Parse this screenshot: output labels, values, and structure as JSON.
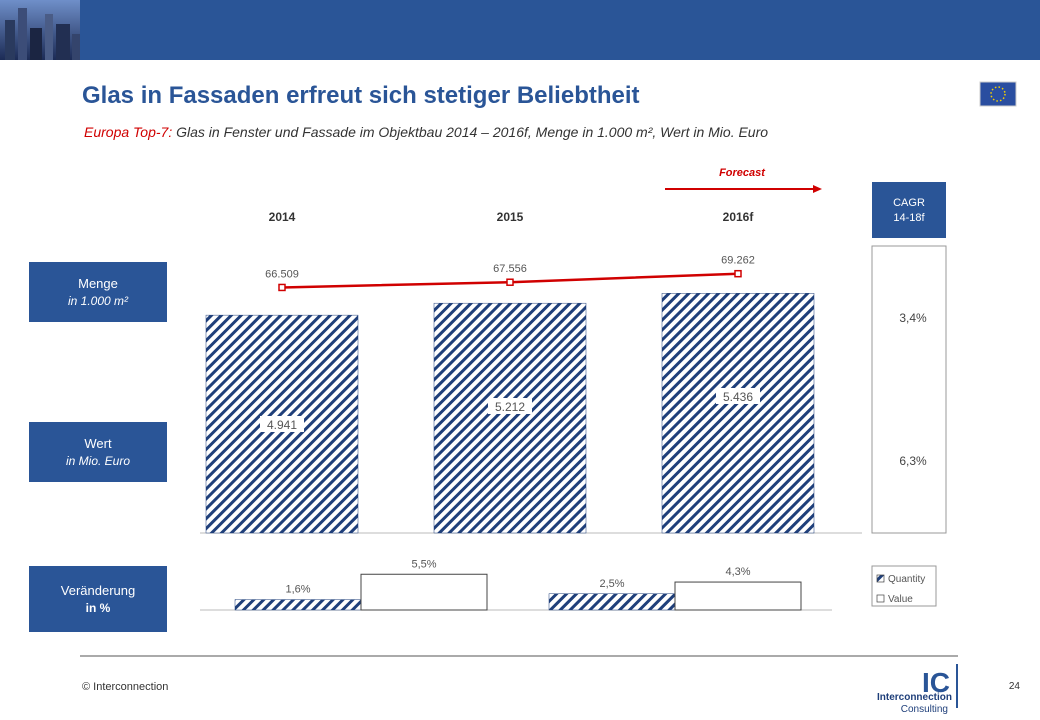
{
  "header": {
    "title": "Glas in Fassaden erfreut sich stetiger Beliebtheit",
    "subtitle_lead": "Europa Top-7:",
    "subtitle": " Glas in Fenster und Fassade im Objektbau 2014 – 2016f, Menge in 1.000 m², Wert in Mio. Euro"
  },
  "forecast": "Forecast",
  "row_labels": [
    [
      "Menge",
      "in 1.000 m²"
    ],
    [
      "Wert",
      "in Mio. Euro"
    ],
    [
      "Veränderung",
      "in %"
    ]
  ],
  "cagr": {
    "title": [
      "CAGR",
      "14-18f"
    ],
    "values": [
      3.4,
      6.3
    ],
    "value_labels": [
      "3,4%",
      "6,3%"
    ]
  },
  "chart_data": [
    {
      "type": "bar",
      "categories": [
        "2014",
        "2015",
        "2016f"
      ],
      "values": [
        4941,
        5212,
        5436
      ],
      "value_labels": [
        "4.941",
        "5.212",
        "5.436"
      ],
      "color": "#1f3f7a",
      "ylim": [
        0,
        6600
      ],
      "line_values": [
        66509,
        67556,
        69262
      ],
      "line_value_labels": [
        "66.509",
        "67.556",
        "69.262"
      ],
      "line_color": "#d00000",
      "y2lim": [
        64000,
        72000
      ]
    },
    {
      "type": "bar",
      "series": [
        {
          "name": "Quantity",
          "color": "#1f3f7a",
          "values": [
            1.6,
            2.5
          ],
          "value_labels": [
            "1,6%",
            "2,5%"
          ]
        },
        {
          "name": "Value",
          "color": "#ffffff",
          "values": [
            5.5,
            4.3
          ],
          "value_labels": [
            "5,5%",
            "4,3%"
          ]
        }
      ],
      "ylim": [
        0,
        6
      ]
    }
  ],
  "footer": {
    "copyright": "© Interconnection",
    "page": "24",
    "logo": [
      "IC",
      "Interconnection",
      "Consulting"
    ]
  }
}
